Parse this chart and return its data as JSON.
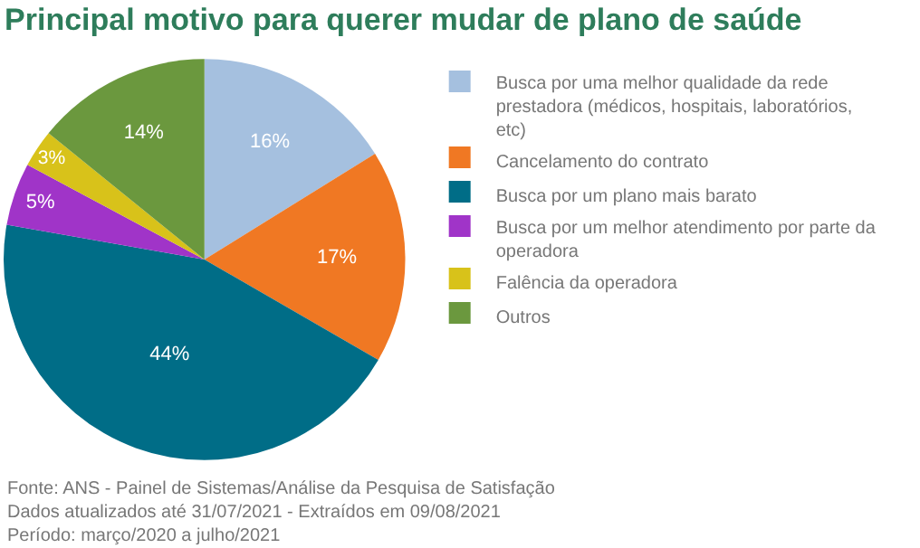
{
  "chart_data": {
    "type": "pie",
    "title": "Principal motivo para querer mudar de plano de saúde",
    "categories": [
      "Busca por uma melhor qualidade da rede prestadora (médicos, hospitais, laboratórios, etc)",
      "Cancelamento do contrato",
      "Busca por um plano mais barato",
      "Busca por um melhor atendimento por parte da operadora",
      "Falência da operadora",
      "Outros"
    ],
    "values": [
      16,
      17,
      44,
      5,
      3,
      14
    ],
    "value_labels": [
      "16%",
      "17%",
      "44%",
      "5%",
      "3%",
      "14%"
    ],
    "colors": [
      "#a5c0df",
      "#f07823",
      "#006d87",
      "#a034c8",
      "#d8c21a",
      "#6b983e"
    ],
    "legend": "right",
    "annotations": [
      "Fonte: ANS - Painel de Sistemas/Análise da Pesquisa de Satisfação",
      "Dados atualizados até 31/07/2021 - Extraídos em 09/08/2021",
      "Período: março/2020 a julho/2021"
    ]
  }
}
